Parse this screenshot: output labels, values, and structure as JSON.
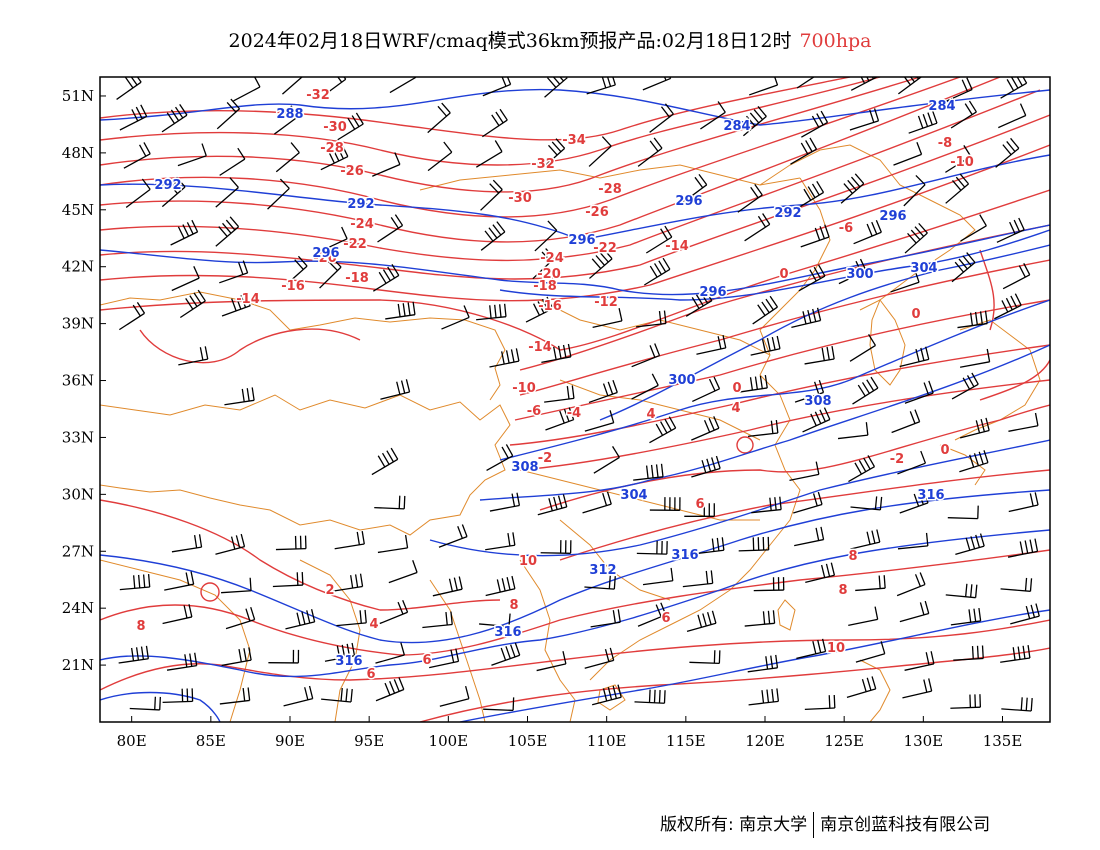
{
  "header": {
    "title_main": "2024年02月18日WRF/cmaq模式36km预报产品:02月18日12时",
    "title_level": "700hpa"
  },
  "map": {
    "region": "East Asia / China",
    "projection": "lat-lon",
    "lon_range": [
      78,
      138
    ],
    "lat_range": [
      18,
      52
    ],
    "lon_ticks": [
      "80E",
      "85E",
      "90E",
      "95E",
      "100E",
      "105E",
      "110E",
      "115E",
      "120E",
      "125E",
      "130E",
      "135E"
    ],
    "lat_ticks": [
      "51N",
      "48N",
      "45N",
      "42N",
      "39N",
      "36N",
      "33N",
      "30N",
      "27N",
      "24N",
      "21N"
    ],
    "colors": {
      "temperature": "#e03c3c",
      "geopotential": "#1f3fd6",
      "boundary": "#e08a2c",
      "wind": "#000000"
    },
    "layers": [
      "geopotential height (blue contours)",
      "temperature (red contours)",
      "wind barbs (black)",
      "boundaries (orange)"
    ]
  },
  "labels": {
    "temperature": [
      "-32",
      "-30",
      "-28",
      "-26",
      "-24",
      "-22",
      "-20",
      "-18",
      "-16",
      "-14",
      "-12",
      "-10",
      "-8",
      "-6",
      "-4",
      "-2",
      "0",
      "2",
      "4",
      "6",
      "8",
      "10",
      "-34"
    ],
    "geopotential": [
      "284",
      "288",
      "292",
      "296",
      "300",
      "304",
      "308",
      "312",
      "316"
    ]
  },
  "footer": {
    "credit_left": "版权所有: 南京大学",
    "credit_right": "南京创蓝科技有限公司"
  }
}
